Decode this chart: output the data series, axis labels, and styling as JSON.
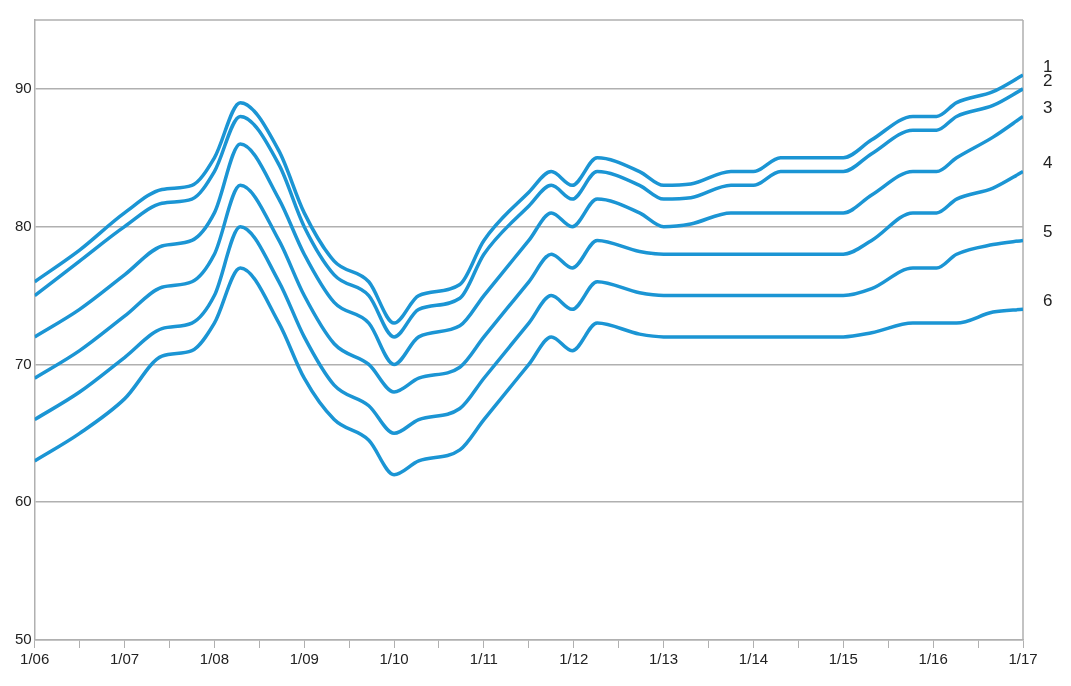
{
  "chart_data": {
    "type": "line",
    "x": [
      "2006-01",
      "2006-07",
      "2007-01",
      "2007-06",
      "2007-10",
      "2008-01",
      "2008-04-15",
      "2008-09-20",
      "2009-01",
      "2009-05",
      "2009-09-20",
      "2010-01",
      "2010-04-10",
      "2010-09-25",
      "2011-01",
      "2011-07",
      "2011-10",
      "2011-12-25",
      "2012-04-05",
      "2012-09-25",
      "2013-01",
      "2013-04-20",
      "2013-10",
      "2014-01",
      "2014-04-20",
      "2015-01",
      "2015-04-25",
      "2015-10-10",
      "2016-01-15",
      "2016-04-05",
      "2016-09",
      "2017-01"
    ],
    "series": [
      {
        "name": "1",
        "color": "#1b95d4",
        "values": [
          76,
          78.3,
          81,
          82.7,
          83,
          85,
          89,
          85.5,
          81,
          77.5,
          76,
          73,
          75,
          75.8,
          79,
          82.5,
          84,
          83,
          85,
          84,
          83,
          83.1,
          84,
          84,
          85,
          85,
          86.3,
          88,
          88,
          89,
          89.8,
          91
        ]
      },
      {
        "name": "2",
        "color": "#1b95d4",
        "values": [
          75,
          77.5,
          80,
          81.7,
          82,
          84,
          88,
          84.5,
          80,
          76.5,
          75,
          72,
          74,
          74.8,
          78,
          81.5,
          83,
          82,
          84,
          83,
          82,
          82.1,
          83,
          83,
          84,
          84,
          85.3,
          87,
          87,
          88,
          88.8,
          90
        ]
      },
      {
        "name": "3",
        "color": "#1b95d4",
        "values": [
          72,
          74,
          76.5,
          78.6,
          79,
          81,
          86,
          82,
          78,
          74.5,
          73,
          70,
          72,
          72.8,
          75,
          79,
          81,
          80,
          82,
          81,
          80,
          80.2,
          81,
          81,
          81,
          81,
          82.3,
          84,
          84,
          85,
          86.5,
          88
        ]
      },
      {
        "name": "4",
        "color": "#1b95d4",
        "values": [
          69,
          71,
          73.5,
          75.6,
          76,
          78,
          83,
          79,
          75,
          71.5,
          70,
          68,
          69,
          69.8,
          72,
          76,
          78,
          77,
          79,
          78.2,
          78,
          78,
          78,
          78,
          78,
          78,
          79,
          81,
          81,
          82,
          82.8,
          84
        ]
      },
      {
        "name": "5",
        "color": "#1b95d4",
        "values": [
          66,
          68,
          70.5,
          72.6,
          73,
          75,
          80,
          76,
          72,
          68.5,
          67,
          65,
          66,
          66.8,
          69,
          73,
          75,
          74,
          76,
          75.2,
          75,
          75,
          75,
          75,
          75,
          75,
          75.5,
          77,
          77,
          78,
          78.7,
          79
        ]
      },
      {
        "name": "6",
        "color": "#1b95d4",
        "values": [
          63,
          65,
          67.5,
          70.6,
          71,
          73,
          77,
          73,
          69,
          66,
          64.5,
          62,
          63,
          63.8,
          66,
          70,
          72,
          71,
          73,
          72.2,
          72,
          72,
          72,
          72,
          72,
          72,
          72.3,
          73,
          73,
          73,
          73.8,
          74
        ]
      }
    ],
    "xlim": [
      "2006-01",
      "2017-01"
    ],
    "xticks": [
      {
        "value": "2006-01",
        "label": "1/06"
      },
      {
        "value": "2006-07",
        "label": null
      },
      {
        "value": "2007-01",
        "label": "1/07"
      },
      {
        "value": "2007-07",
        "label": null
      },
      {
        "value": "2008-01",
        "label": "1/08"
      },
      {
        "value": "2008-07",
        "label": null
      },
      {
        "value": "2009-01",
        "label": "1/09"
      },
      {
        "value": "2009-07",
        "label": null
      },
      {
        "value": "2010-01",
        "label": "1/10"
      },
      {
        "value": "2010-07",
        "label": null
      },
      {
        "value": "2011-01",
        "label": "1/11"
      },
      {
        "value": "2011-07",
        "label": null
      },
      {
        "value": "2012-01",
        "label": "1/12"
      },
      {
        "value": "2012-07",
        "label": null
      },
      {
        "value": "2013-01",
        "label": "1/13"
      },
      {
        "value": "2013-07",
        "label": null
      },
      {
        "value": "2014-01",
        "label": "1/14"
      },
      {
        "value": "2014-07",
        "label": null
      },
      {
        "value": "2015-01",
        "label": "1/15"
      },
      {
        "value": "2015-07",
        "label": null
      },
      {
        "value": "2016-01",
        "label": "1/16"
      },
      {
        "value": "2016-07",
        "label": null
      },
      {
        "value": "2017-01",
        "label": "1/17"
      }
    ],
    "ylim": [
      50,
      95
    ],
    "yticks": [
      50,
      60,
      70,
      80,
      90
    ],
    "grid": "y",
    "legend": false,
    "marker": "none",
    "line_style": "solid"
  }
}
